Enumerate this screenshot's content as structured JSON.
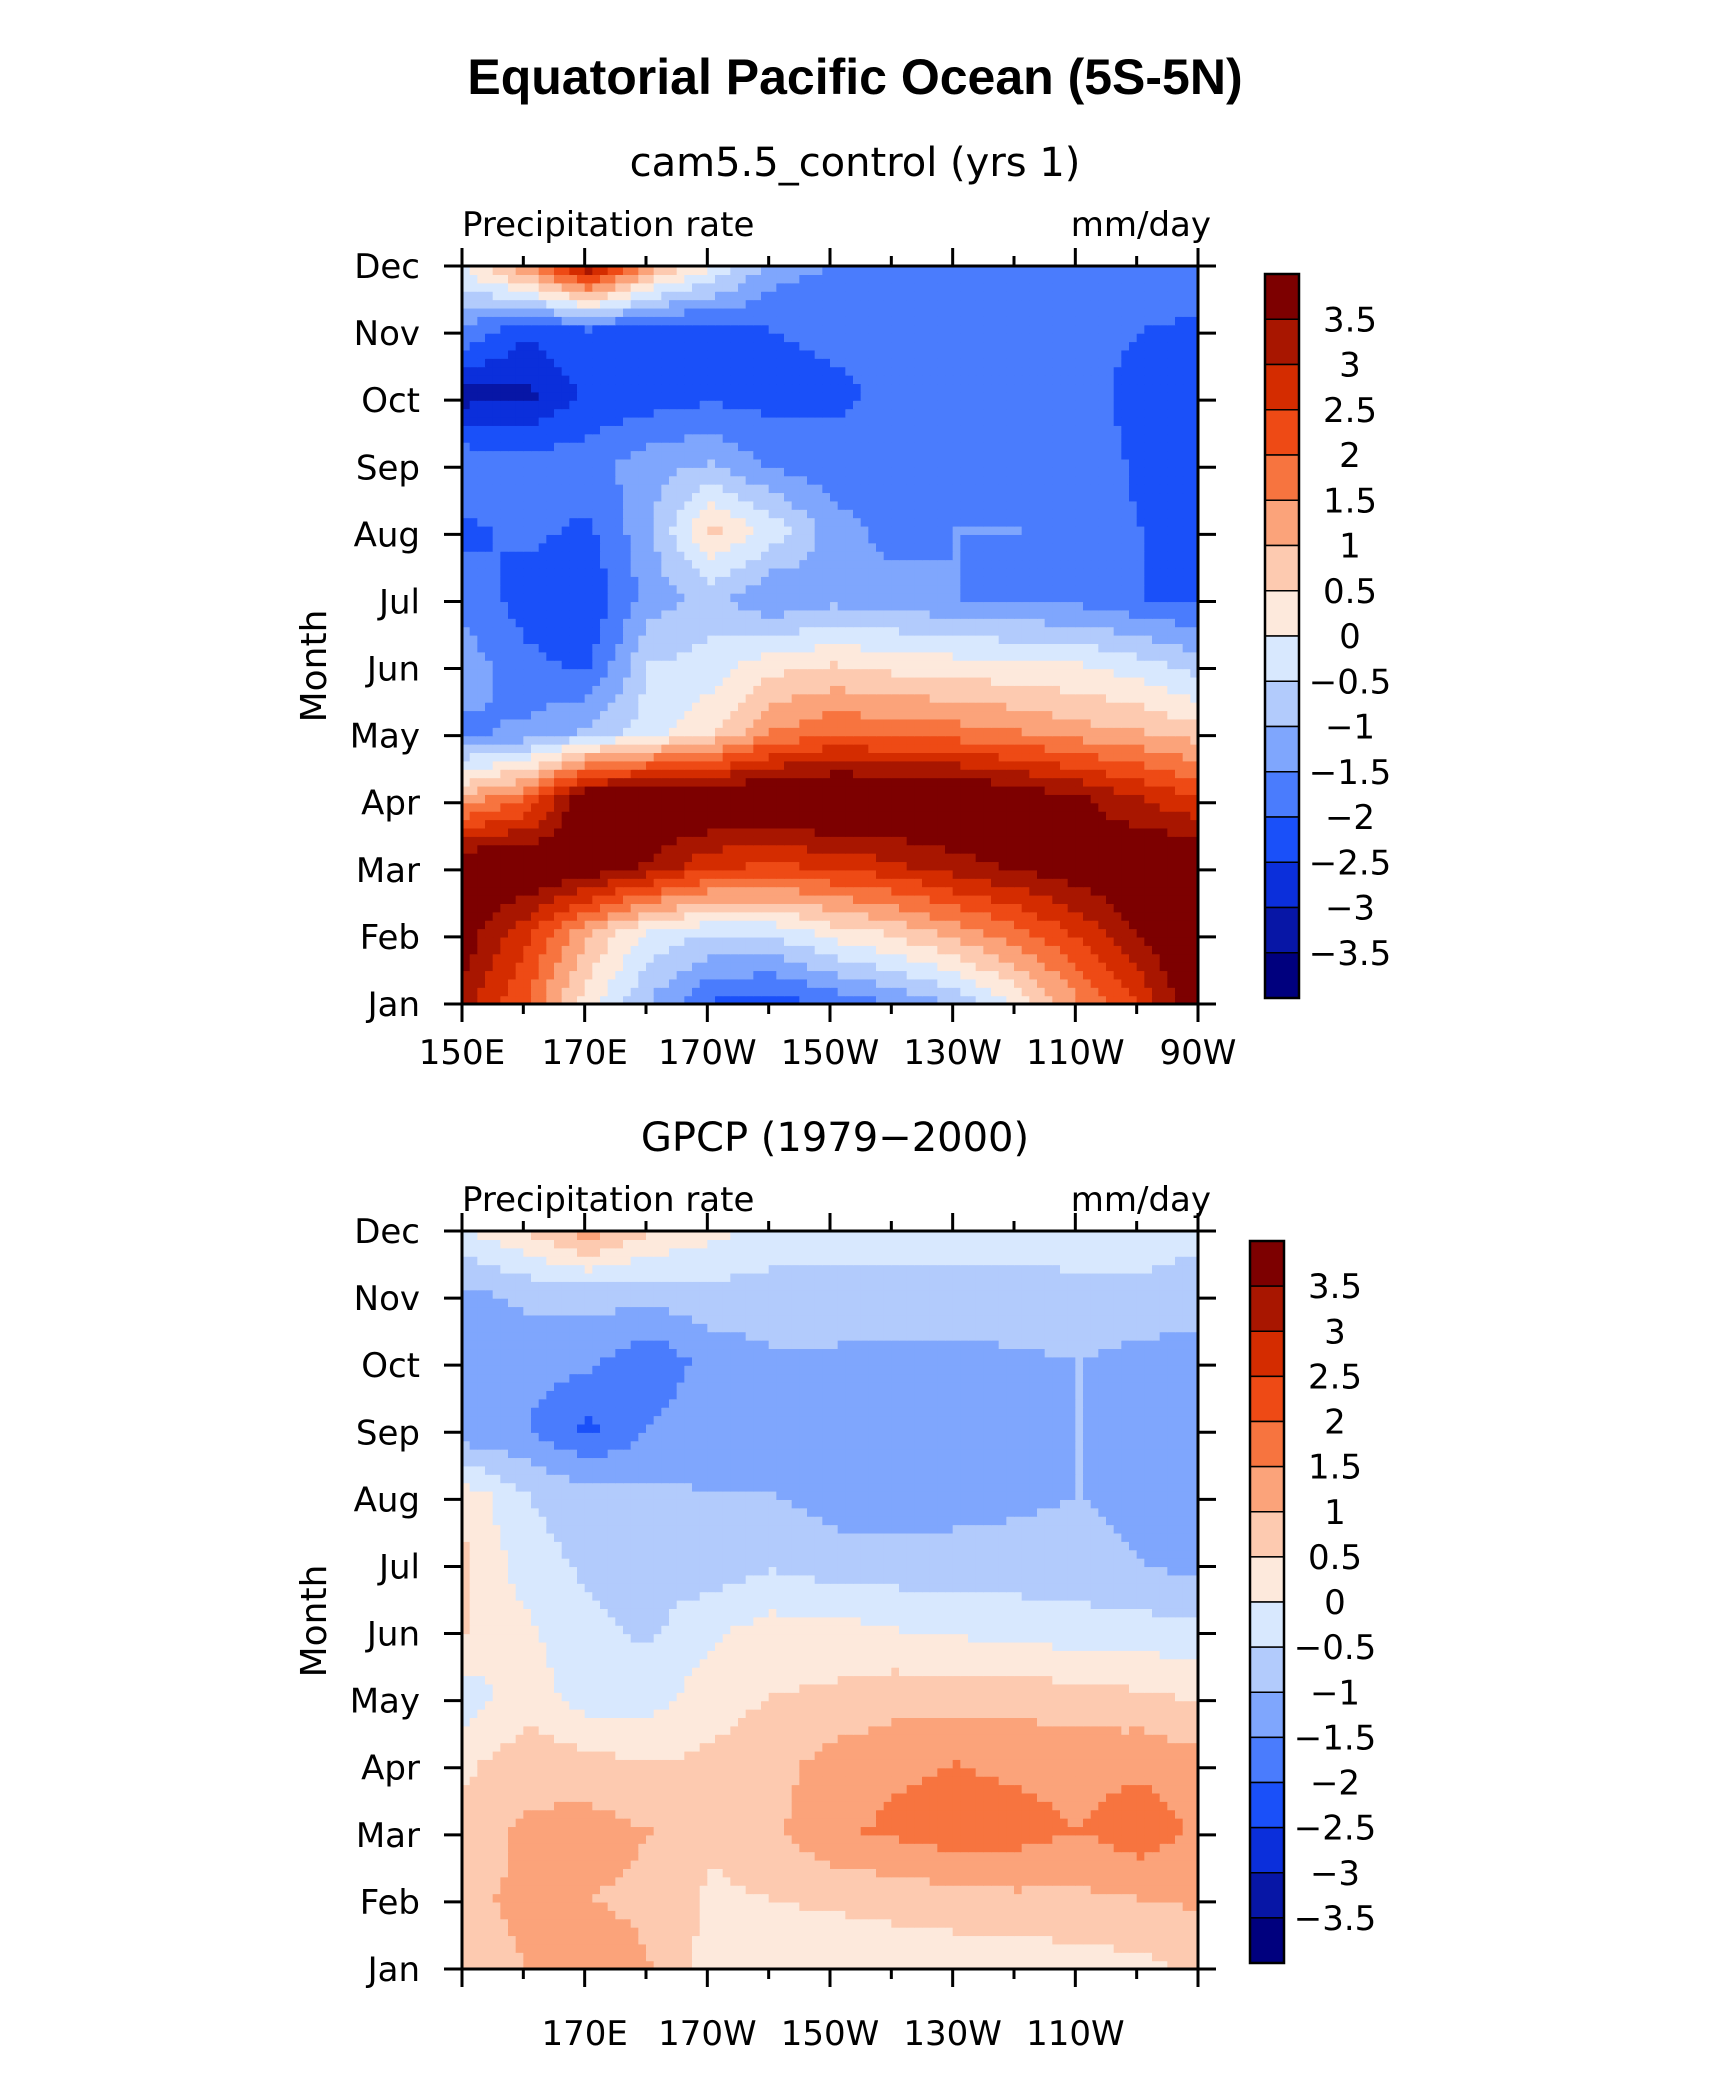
{
  "title": "Equatorial Pacific Ocean (5S-5N)",
  "colors": {
    "levels": [
      -3.5,
      -3,
      -2.5,
      -2,
      -1.5,
      -1,
      -0.5,
      0,
      0.5,
      1,
      1.5,
      2,
      2.5,
      3,
      3.5
    ],
    "fills": [
      "#00007e",
      "#0716a6",
      "#0b2fdb",
      "#1a50f9",
      "#4a7cfd",
      "#7fa6fd",
      "#b2cbfc",
      "#d8e8fe",
      "#fde9dc",
      "#fdcab0",
      "#fba37a",
      "#f7743f",
      "#ee4a15",
      "#d42c00",
      "#a81600",
      "#7d0000"
    ]
  },
  "chart_data": [
    {
      "type": "heatmap",
      "subtitle": "cam5.5_control (yrs 1)",
      "left_label": "Precipitation rate",
      "right_label": "mm/day",
      "ylabel": "Month",
      "xlabel": "",
      "x_tick_labels": [
        "150E",
        "170E",
        "170W",
        "150W",
        "130W",
        "110W",
        "90W"
      ],
      "y_tick_labels": [
        "Jan",
        "Feb",
        "Mar",
        "Apr",
        "May",
        "Jun",
        "Jul",
        "Aug",
        "Sep",
        "Oct",
        "Nov",
        "Dec"
      ],
      "colorbar_labels": [
        "3.5",
        "3",
        "2.5",
        "2",
        "1.5",
        "1",
        "0.5",
        "0",
        "−0.5",
        "−1",
        "−1.5",
        "−2",
        "−2.5",
        "−3",
        "−3.5"
      ],
      "xlim": [
        150,
        270
      ],
      "ylim": [
        1,
        12
      ],
      "x": [
        150,
        160,
        170,
        180,
        190,
        200,
        210,
        220,
        230,
        240,
        250,
        260,
        270
      ],
      "y": [
        "Jan",
        "Feb",
        "Mar",
        "Apr",
        "May",
        "Jun",
        "Jul",
        "Aug",
        "Sep",
        "Oct",
        "Nov",
        "Dec"
      ],
      "z": [
        [
          3.2,
          2.0,
          0.2,
          -1.0,
          -2.0,
          -2.2,
          -1.8,
          -1.4,
          -0.8,
          0.2,
          1.5,
          2.6,
          4.2
        ],
        [
          3.8,
          2.6,
          1.0,
          -0.1,
          -0.5,
          -0.4,
          0.2,
          0.6,
          1.2,
          1.8,
          2.6,
          3.6,
          4.2
        ],
        [
          4.2,
          4.2,
          4.0,
          3.4,
          2.6,
          2.4,
          2.6,
          2.9,
          3.3,
          3.6,
          3.9,
          4.2,
          4.2
        ],
        [
          1.2,
          2.0,
          4.2,
          4.3,
          4.3,
          4.4,
          4.5,
          4.4,
          4.3,
          4.0,
          3.6,
          3.0,
          2.5
        ],
        [
          -1.6,
          -1.4,
          -0.9,
          -0.2,
          0.4,
          1.5,
          1.9,
          1.8,
          1.7,
          1.5,
          1.2,
          1.0,
          0.7
        ],
        [
          -1.2,
          -1.9,
          -2.1,
          -0.5,
          -0.3,
          0.3,
          0.5,
          0.3,
          0.2,
          0.1,
          0.0,
          -0.3,
          -0.8
        ],
        [
          -1.8,
          -2.2,
          -2.4,
          -1.3,
          -0.8,
          -1.5,
          -1.2,
          -1.3,
          -1.5,
          -1.6,
          -1.7,
          -2.0,
          -2.1
        ],
        [
          -2.1,
          -1.9,
          -2.1,
          -1.1,
          0.6,
          -0.2,
          -1.3,
          -1.7,
          -1.5,
          -1.5,
          -1.7,
          -2.0,
          -2.1
        ],
        [
          -1.6,
          -1.8,
          -1.7,
          -1.2,
          -1.0,
          -1.6,
          -1.8,
          -1.8,
          -1.8,
          -1.8,
          -1.7,
          -2.1,
          -2.2
        ],
        [
          -3.2,
          -3.1,
          -2.4,
          -2.3,
          -2.1,
          -2.2,
          -2.1,
          -1.9,
          -1.9,
          -1.9,
          -1.8,
          -2.2,
          -2.3
        ],
        [
          -1.6,
          -2.4,
          -2.0,
          -2.3,
          -2.2,
          -2.0,
          -1.9,
          -1.8,
          -1.7,
          -1.7,
          -1.8,
          -2.0,
          -2.1
        ],
        [
          0.2,
          1.8,
          3.8,
          1.5,
          0.2,
          -1.2,
          -1.5,
          -1.6,
          -1.7,
          -1.5,
          -1.5,
          -1.5,
          -1.7
        ]
      ]
    },
    {
      "type": "heatmap",
      "subtitle": "GPCP (1979−2000)",
      "left_label": "Precipitation rate",
      "right_label": "mm/day",
      "ylabel": "Month",
      "xlabel": "",
      "x_tick_labels": [
        "170E",
        "170W",
        "150W",
        "130W",
        "110W"
      ],
      "y_tick_labels": [
        "Jan",
        "Feb",
        "Mar",
        "Apr",
        "May",
        "Jun",
        "Jul",
        "Aug",
        "Sep",
        "Oct",
        "Nov",
        "Dec"
      ],
      "colorbar_labels": [
        "3.5",
        "3",
        "2.5",
        "2",
        "1.5",
        "1",
        "0.5",
        "0",
        "−0.5",
        "−1",
        "−1.5",
        "−2",
        "−2.5",
        "−3",
        "−3.5"
      ],
      "xlim": [
        150,
        270
      ],
      "ylim": [
        1,
        12
      ],
      "x": [
        150,
        160,
        170,
        180,
        190,
        200,
        210,
        220,
        230,
        240,
        250,
        260,
        270
      ],
      "y": [
        "Jan",
        "Feb",
        "Mar",
        "Apr",
        "May",
        "Jun",
        "Jul",
        "Aug",
        "Sep",
        "Oct",
        "Nov",
        "Dec"
      ],
      "z": [
        [
          0.8,
          1.0,
          1.3,
          1.0,
          0.3,
          0.2,
          0.1,
          0.2,
          0.2,
          0.2,
          0.3,
          0.4,
          0.6
        ],
        [
          0.9,
          1.1,
          1.0,
          0.9,
          0.4,
          0.5,
          0.6,
          0.7,
          0.8,
          0.9,
          0.9,
          1.0,
          1.1
        ],
        [
          0.7,
          1.1,
          1.2,
          1.0,
          0.6,
          0.9,
          1.4,
          1.6,
          1.8,
          1.7,
          1.5,
          1.8,
          1.4
        ],
        [
          0.4,
          0.8,
          0.7,
          0.5,
          0.6,
          0.8,
          1.2,
          1.4,
          1.5,
          1.4,
          1.3,
          1.4,
          1.2
        ],
        [
          -0.3,
          0.3,
          -0.3,
          -0.2,
          0.3,
          0.5,
          0.6,
          0.8,
          0.8,
          0.8,
          0.7,
          0.6,
          0.4
        ],
        [
          0.5,
          0.1,
          -0.4,
          -0.6,
          -0.1,
          0.2,
          0.2,
          0.0,
          -0.1,
          -0.2,
          -0.3,
          -0.3,
          -0.4
        ],
        [
          0.6,
          -0.3,
          -0.6,
          -0.7,
          -0.8,
          -0.6,
          -0.8,
          -0.8,
          -0.8,
          -0.8,
          -0.8,
          -1.0,
          -1.2
        ],
        [
          0.3,
          -0.5,
          -0.8,
          -0.9,
          -1.0,
          -1.0,
          -1.2,
          -1.3,
          -1.2,
          -1.1,
          -1.0,
          -1.2,
          -1.4
        ],
        [
          -1.4,
          -1.5,
          -2.1,
          -1.5,
          -1.1,
          -1.2,
          -1.3,
          -1.4,
          -1.3,
          -1.2,
          -1.0,
          -1.1,
          -1.2
        ],
        [
          -1.2,
          -1.3,
          -1.4,
          -1.9,
          -1.3,
          -1.1,
          -1.1,
          -1.2,
          -1.2,
          -1.1,
          -1.0,
          -1.2,
          -1.3
        ],
        [
          -1.1,
          -0.9,
          -0.8,
          -0.8,
          -0.7,
          -0.7,
          -0.7,
          -0.6,
          -0.6,
          -0.6,
          -0.6,
          -0.6,
          -0.7
        ],
        [
          0.0,
          0.6,
          1.4,
          0.6,
          0.2,
          -0.2,
          -0.3,
          -0.4,
          -0.4,
          -0.4,
          -0.3,
          -0.3,
          -0.4
        ]
      ]
    }
  ]
}
